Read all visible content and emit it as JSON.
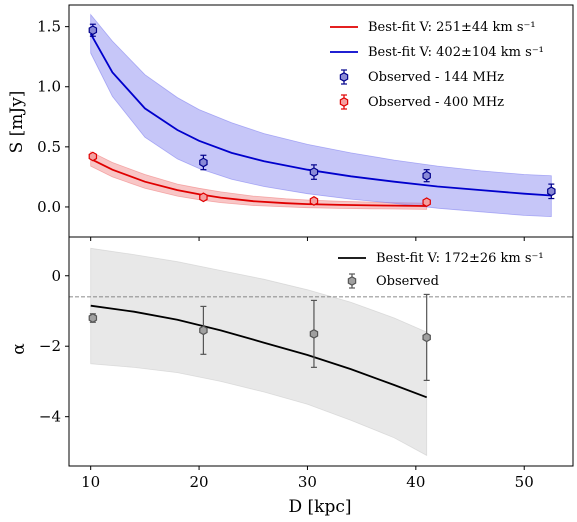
{
  "chart_data": [
    {
      "type": "line",
      "panel": "top",
      "title": "",
      "xlabel": "",
      "ylabel": "S [mJy]",
      "xlim": [
        8,
        54.5
      ],
      "ylim": [
        -0.25,
        1.68
      ],
      "xticks": [
        10,
        20,
        30,
        40,
        50
      ],
      "yticks": [
        0.0,
        0.5,
        1.0,
        1.5
      ],
      "ytick_labels": [
        "0.0",
        "0.5",
        "1.0",
        "1.5"
      ],
      "grid": false,
      "legend_position": "top-right",
      "series": [
        {
          "name": "Best-fit V: 251±44 km s⁻¹",
          "kind": "line",
          "color": "#e00000",
          "band_color": "#f08080",
          "x": [
            10,
            12,
            15,
            18,
            20,
            22,
            25,
            28,
            30,
            33,
            36,
            38,
            41
          ],
          "y": [
            0.4,
            0.31,
            0.21,
            0.14,
            0.105,
            0.078,
            0.048,
            0.031,
            0.024,
            0.017,
            0.013,
            0.011,
            0.008
          ],
          "band_upper": [
            0.46,
            0.37,
            0.27,
            0.19,
            0.155,
            0.125,
            0.09,
            0.068,
            0.058,
            0.047,
            0.04,
            0.036,
            0.032
          ],
          "band_lower": [
            0.34,
            0.25,
            0.155,
            0.09,
            0.06,
            0.036,
            0.012,
            0.0,
            -0.006,
            -0.012,
            -0.015,
            -0.017,
            -0.02
          ]
        },
        {
          "name": "Best-fit V: 402±104 km s⁻¹",
          "kind": "line",
          "color": "#0000cc",
          "band_color": "#8080f0",
          "x": [
            10,
            12,
            15,
            18,
            20,
            23,
            26,
            30,
            34,
            38,
            42,
            46,
            50,
            52.5
          ],
          "y": [
            1.44,
            1.12,
            0.82,
            0.64,
            0.55,
            0.45,
            0.38,
            0.31,
            0.255,
            0.21,
            0.17,
            0.14,
            0.11,
            0.095
          ],
          "band_upper": [
            1.6,
            1.38,
            1.1,
            0.91,
            0.81,
            0.7,
            0.61,
            0.52,
            0.45,
            0.39,
            0.34,
            0.3,
            0.27,
            0.26
          ],
          "band_lower": [
            1.28,
            0.92,
            0.58,
            0.4,
            0.32,
            0.23,
            0.17,
            0.11,
            0.065,
            0.03,
            -0.01,
            -0.04,
            -0.07,
            -0.08
          ]
        },
        {
          "name": "Observed - 144 MHz",
          "kind": "errorbar",
          "color": "#00008b",
          "face_color": "#8a8ad6",
          "x": [
            10.2,
            20.4,
            30.6,
            41.0,
            52.5
          ],
          "y": [
            1.47,
            0.37,
            0.29,
            0.26,
            0.13
          ],
          "yerr": [
            0.05,
            0.06,
            0.06,
            0.05,
            0.06
          ]
        },
        {
          "name": "Observed - 400 MHz",
          "kind": "errorbar",
          "color": "#e00000",
          "face_color": "#f4a0a0",
          "x": [
            10.2,
            20.4,
            30.6,
            41.0
          ],
          "y": [
            0.42,
            0.08,
            0.05,
            0.04
          ],
          "yerr": [
            0.02,
            0.015,
            0.015,
            0.015
          ]
        }
      ]
    },
    {
      "type": "line",
      "panel": "bottom",
      "title": "",
      "xlabel": "D [kpc]",
      "ylabel": "α",
      "xlim": [
        8,
        54.5
      ],
      "ylim": [
        -5.4,
        1.1
      ],
      "xticks": [
        10,
        20,
        30,
        40,
        50
      ],
      "yticks": [
        0,
        -2,
        -4
      ],
      "ytick_labels": [
        "0",
        "−2",
        "−4"
      ],
      "grid": false,
      "legend_position": "top-right",
      "reference_line": {
        "y": -0.6,
        "style": "dashed",
        "color": "#666666"
      },
      "series": [
        {
          "name": "Best-fit V: 172±26 km s⁻¹",
          "kind": "line",
          "color": "#000000",
          "band_color": "#cccccc",
          "x": [
            10,
            14,
            18,
            22,
            26,
            30,
            34,
            38,
            41
          ],
          "y": [
            -0.85,
            -1.02,
            -1.25,
            -1.55,
            -1.9,
            -2.25,
            -2.65,
            -3.1,
            -3.45
          ],
          "band_upper": [
            0.78,
            0.6,
            0.4,
            0.15,
            -0.1,
            -0.4,
            -0.75,
            -1.2,
            -1.6
          ],
          "band_lower": [
            -2.5,
            -2.6,
            -2.75,
            -3.0,
            -3.3,
            -3.65,
            -4.1,
            -4.6,
            -5.1
          ]
        },
        {
          "name": "Observed",
          "kind": "errorbar",
          "color": "#555555",
          "face_color": "#a0a0a0",
          "x": [
            10.2,
            20.4,
            30.6,
            41.0
          ],
          "y": [
            -1.2,
            -1.55,
            -1.65,
            -1.75
          ],
          "yerr": [
            0.12,
            0.68,
            0.95,
            1.22
          ]
        }
      ]
    }
  ]
}
